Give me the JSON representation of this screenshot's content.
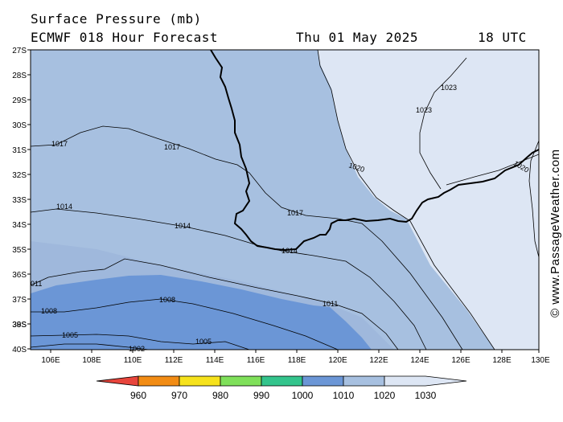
{
  "header": {
    "title": "Surface Pressure (mb)",
    "subtitle": "ECMWF 018 Hour Forecast",
    "date": "Thu 01 May 2025",
    "time": "18 UTC"
  },
  "axes": {
    "lat_labels": [
      "27S",
      "28S",
      "29S",
      "30S",
      "31S",
      "32S",
      "33S",
      "34S",
      "35S",
      "36S",
      "37S",
      "38S",
      "39S",
      "40S"
    ],
    "lon_labels": [
      "106E",
      "108E",
      "110E",
      "112E",
      "114E",
      "116E",
      "118E",
      "120E",
      "122E",
      "124E",
      "126E",
      "128E",
      "130E"
    ]
  },
  "isobars": {
    "labels": [
      "1023",
      "1023",
      "1020",
      "1020",
      "1017",
      "1017",
      "1017",
      "1014",
      "1014",
      "1014",
      "011",
      "1011",
      "1008",
      "1008",
      "1005",
      "1005",
      "1002"
    ]
  },
  "legend": {
    "values": [
      "960",
      "970",
      "980",
      "990",
      "1000",
      "1010",
      "1020",
      "1030"
    ],
    "colors": [
      "#e8453c",
      "#f28c14",
      "#f6e21c",
      "#7fe05a",
      "#33c48c",
      "#6b96d6",
      "#a7c0e0",
      "#dde6f4"
    ]
  },
  "credit": "© www.PassageWeather.com",
  "colors": {
    "band_1020": "#dde6f4",
    "band_1010": "#a7c0e0",
    "band_1000": "#6b96d6",
    "isobar": "#000000",
    "coast": "#000000"
  }
}
